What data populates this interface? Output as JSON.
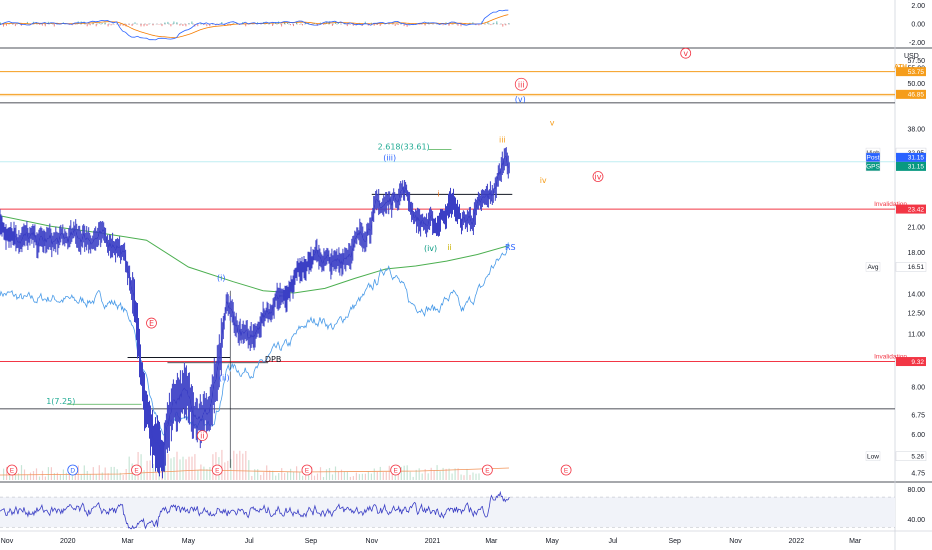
{
  "chart_data": [
    {
      "panel": "top-oscillator",
      "type": "line",
      "y_ticks": [
        "2.00",
        "0.00",
        "-2.00"
      ],
      "ylim": [
        -2.6,
        2.6
      ],
      "grid": false
    },
    {
      "panel": "price",
      "type": "line",
      "title": "",
      "currency_label": "USD",
      "y_scale": "log",
      "ylim": [
        4.5,
        62
      ],
      "y_ticks": [
        "57.50",
        "55.00",
        "50.00",
        "46.85",
        "38.00",
        "32.95",
        "31.15",
        "31.15",
        "23.42",
        "21.00",
        "18.00",
        "16.51",
        "14.00",
        "12.50",
        "11.00",
        "9.32",
        "8.00",
        "6.75",
        "6.00",
        "5.26",
        "4.75"
      ],
      "x_ticks": [
        "Nov",
        "2020",
        "Mar",
        "May",
        "Jul",
        "Sep",
        "Nov",
        "2021",
        "Mar",
        "May",
        "Jul",
        "Sep",
        "Nov",
        "2022",
        "Mar"
      ],
      "x_tick_dates": [
        "2019-11-01",
        "2020-01-01",
        "2020-03-01",
        "2020-05-01",
        "2020-07-01",
        "2020-09-01",
        "2020-11-01",
        "2021-01-01",
        "2021-03-01",
        "2021-05-01",
        "2021-07-01",
        "2021-09-01",
        "2021-11-01",
        "2022-01-01",
        "2022-03-01"
      ],
      "xlim": [
        "2019-10-25",
        "2022-04-10"
      ],
      "price_tags": [
        {
          "label": "",
          "value": "53.75",
          "color": "#f59d1b"
        },
        {
          "label": "",
          "value": "46.85",
          "color": "#f59d1b"
        },
        {
          "label": "High",
          "value": "32.95",
          "color": "#ffffff"
        },
        {
          "label": "Post",
          "value": "31.15",
          "color": "#2962ff"
        },
        {
          "label": "GPS",
          "value": "31.15",
          "color": "#089981"
        },
        {
          "label": "",
          "value": "23.42",
          "color": "#f23645"
        },
        {
          "label": "Avg",
          "value": "16.51",
          "color": "#ffffff"
        },
        {
          "label": "",
          "value": "9.32",
          "color": "#f23645"
        },
        {
          "label": "Low",
          "value": "5.26",
          "color": "#ffffff"
        }
      ],
      "horizontal_lines": [
        {
          "value": 53.75,
          "color": "#f59d1b",
          "label": "ATH"
        },
        {
          "value": 46.85,
          "color": "#f59d1b",
          "label": ""
        },
        {
          "value": 44.5,
          "color": "#131722",
          "label": ""
        },
        {
          "value": 23.42,
          "color": "#f23645",
          "label": "Invalidation"
        },
        {
          "value": 9.32,
          "color": "#f23645",
          "label": "Invalidation"
        },
        {
          "value": 7.0,
          "color": "#131722",
          "label": ""
        }
      ],
      "annotations": [
        {
          "text": "(i)",
          "date": "2020-06-03",
          "value": 15.2,
          "color": "#2962ff"
        },
        {
          "text": "(ii)",
          "date": "2020-06-06",
          "value": 8.3,
          "color": "#2962ff"
        },
        {
          "text": "(iii)",
          "date": "2020-11-19",
          "value": 31.4,
          "color": "#2962ff"
        },
        {
          "text": "(iv)",
          "date": "2020-12-30",
          "value": 18.2,
          "color": "#089981"
        },
        {
          "text": "(v)",
          "date": "2021-03-30",
          "value": 44.8,
          "color": "#2962ff"
        },
        {
          "text": "i",
          "date": "2021-01-07",
          "value": 25.3,
          "color": "#e8741b"
        },
        {
          "text": "ii",
          "date": "2021-01-18",
          "value": 18.3,
          "color": "#c9b200"
        },
        {
          "text": "iii",
          "date": "2021-03-12",
          "value": 35.0,
          "color": "#f59d1b"
        },
        {
          "text": "iv",
          "date": "2021-04-22",
          "value": 27.4,
          "color": "#f59d1b"
        },
        {
          "text": "v",
          "date": "2021-05-01",
          "value": 38.8,
          "color": "#f59d1b"
        },
        {
          "text": "iii",
          "date": "2021-03-31",
          "value": 48.9,
          "color": "#f23645"
        },
        {
          "text": "iv",
          "date": "2021-06-16",
          "value": 28.0,
          "color": "#f23645"
        },
        {
          "text": "v",
          "date": "2021-09-12",
          "value": 59.0,
          "color": "#f23645"
        },
        {
          "text": "ii",
          "date": "2020-05-15",
          "value": 5.85,
          "color": "#f23645"
        },
        {
          "text": "RS",
          "date": "2021-03-20",
          "value": 18.3,
          "color": "#2962ff"
        },
        {
          "text": "DPB",
          "date": "2020-07-25",
          "value": 9.28,
          "color": "#131722"
        },
        {
          "text": "2.618(33.61)",
          "date": "2020-12-03",
          "value": 33.6,
          "color": "#22ab94"
        },
        {
          "text": "1(7.25)",
          "date": "2019-12-25",
          "value": 7.2,
          "color": "#22ab94"
        },
        {
          "text": "E",
          "date": "2020-03-25",
          "value": 11.55,
          "color": "#f23645"
        }
      ],
      "event_markers": [
        {
          "text": "E",
          "date": "2019-11-06"
        },
        {
          "text": "D",
          "date": "2020-01-06"
        },
        {
          "text": "E",
          "date": "2020-03-10"
        },
        {
          "text": "E",
          "date": "2020-05-30"
        },
        {
          "text": "E",
          "date": "2020-08-28"
        },
        {
          "text": "E",
          "date": "2020-11-25"
        },
        {
          "text": "E",
          "date": "2021-02-25"
        },
        {
          "text": "E",
          "date": "2021-05-15"
        }
      ],
      "series": [
        {
          "name": "",
          "color": "#3b3fc5",
          "points": [
            [
              "2019-10-25",
              21.5
            ],
            [
              "2019-11-15",
              19.8
            ],
            [
              "2019-12-01",
              19.3
            ],
            [
              "2019-12-20",
              19.2
            ],
            [
              "2020-01-10",
              19.9
            ],
            [
              "2020-02-01",
              19.7
            ],
            [
              "2020-02-20",
              19.0
            ],
            [
              "2020-03-01",
              16.5
            ],
            [
              "2020-03-10",
              12.3
            ],
            [
              "2020-03-18",
              7.3
            ],
            [
              "2020-03-25",
              6.0
            ],
            [
              "2020-04-05",
              5.3
            ],
            [
              "2020-04-15",
              7.3
            ],
            [
              "2020-04-25",
              7.8
            ],
            [
              "2020-05-05",
              7.2
            ],
            [
              "2020-05-15",
              6.7
            ],
            [
              "2020-05-22",
              6.9
            ],
            [
              "2020-06-01",
              9.0
            ],
            [
              "2020-06-09",
              13.2
            ],
            [
              "2020-06-20",
              11.3
            ],
            [
              "2020-07-01",
              10.5
            ],
            [
              "2020-07-10",
              11.8
            ],
            [
              "2020-07-25",
              13.3
            ],
            [
              "2020-08-10",
              14.6
            ],
            [
              "2020-08-25",
              17.2
            ],
            [
              "2020-09-10",
              17.6
            ],
            [
              "2020-09-25",
              16.6
            ],
            [
              "2020-10-10",
              18.4
            ],
            [
              "2020-10-25",
              20.3
            ],
            [
              "2020-11-05",
              23.5
            ],
            [
              "2020-11-18",
              24.3
            ],
            [
              "2020-12-01",
              26.5
            ],
            [
              "2020-12-06",
              25.8
            ],
            [
              "2020-12-15",
              22.3
            ],
            [
              "2020-12-25",
              21.4
            ],
            [
              "2021-01-05",
              21.2
            ],
            [
              "2021-01-15",
              23.6
            ],
            [
              "2021-01-22",
              24.3
            ],
            [
              "2021-01-30",
              21.6
            ],
            [
              "2021-02-10",
              22.3
            ],
            [
              "2021-02-20",
              24.2
            ],
            [
              "2021-03-01",
              25.3
            ],
            [
              "2021-03-10",
              29.0
            ],
            [
              "2021-03-16",
              32.9
            ],
            [
              "2021-03-19",
              31.15
            ]
          ]
        },
        {
          "name": "RS",
          "color": "#4a9be8",
          "points": [
            [
              "2019-10-25",
              14.2
            ],
            [
              "2019-11-20",
              13.5
            ],
            [
              "2019-12-15",
              13.7
            ],
            [
              "2020-01-10",
              13.4
            ],
            [
              "2020-02-01",
              13.6
            ],
            [
              "2020-02-20",
              13.2
            ],
            [
              "2020-03-05",
              12.0
            ],
            [
              "2020-03-15",
              9.2
            ],
            [
              "2020-03-25",
              7.2
            ],
            [
              "2020-04-05",
              6.0
            ],
            [
              "2020-04-20",
              6.7
            ],
            [
              "2020-05-05",
              6.5
            ],
            [
              "2020-05-20",
              6.2
            ],
            [
              "2020-06-01",
              7.2
            ],
            [
              "2020-06-10",
              9.1
            ],
            [
              "2020-06-25",
              8.8
            ],
            [
              "2020-07-10",
              8.9
            ],
            [
              "2020-07-25",
              9.8
            ],
            [
              "2020-08-10",
              10.3
            ],
            [
              "2020-08-25",
              11.6
            ],
            [
              "2020-09-10",
              12.1
            ],
            [
              "2020-09-25",
              11.4
            ],
            [
              "2020-10-10",
              12.7
            ],
            [
              "2020-10-25",
              13.8
            ],
            [
              "2020-11-05",
              15.0
            ],
            [
              "2020-11-18",
              16.9
            ],
            [
              "2020-12-01",
              14.7
            ],
            [
              "2020-12-10",
              13.2
            ],
            [
              "2020-12-25",
              13.0
            ],
            [
              "2021-01-05",
              12.7
            ],
            [
              "2021-01-15",
              13.6
            ],
            [
              "2021-01-22",
              13.9
            ],
            [
              "2021-01-30",
              12.5
            ],
            [
              "2021-02-10",
              13.6
            ],
            [
              "2021-02-20",
              14.6
            ],
            [
              "2021-03-01",
              16.4
            ],
            [
              "2021-03-10",
              17.3
            ],
            [
              "2021-03-18",
              19.0
            ]
          ]
        },
        {
          "name": "",
          "color": "#4caf50",
          "points": [
            [
              "2019-10-25",
              22.5
            ],
            [
              "2019-12-15",
              21.1
            ],
            [
              "2020-02-01",
              20.3
            ],
            [
              "2020-03-20",
              19.4
            ],
            [
              "2020-05-01",
              16.5
            ],
            [
              "2020-06-15",
              15.1
            ],
            [
              "2020-07-15",
              14.3
            ],
            [
              "2020-08-15",
              14.1
            ],
            [
              "2020-09-15",
              14.5
            ],
            [
              "2020-10-15",
              15.4
            ],
            [
              "2020-11-15",
              16.3
            ],
            [
              "2020-12-15",
              16.6
            ],
            [
              "2021-01-15",
              17.1
            ],
            [
              "2021-02-15",
              17.8
            ],
            [
              "2021-03-19",
              18.8
            ]
          ]
        }
      ]
    },
    {
      "panel": "bottom-oscillator",
      "type": "line",
      "y_ticks": [
        "80.00",
        "40.00"
      ],
      "ylim": [
        25,
        90
      ],
      "grid": false
    }
  ]
}
